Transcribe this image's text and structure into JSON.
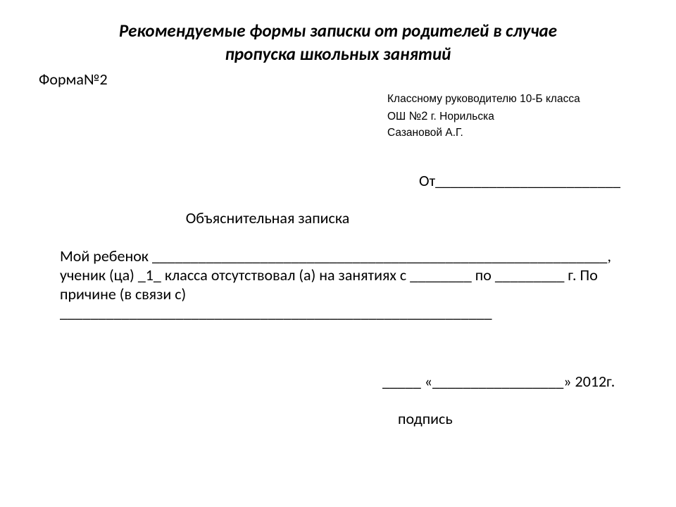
{
  "title_line1": "Рекомендуемые формы записки от родителей в случае",
  "title_line2": "пропуска школьных занятий",
  "form_no": "Форма№2",
  "addressee": {
    "line1": "Классному руководителю 10-Б класса",
    "line2_pre": "ОШ ",
    "line2_num": "№2",
    "line2_post": " г. Норильска",
    "line3": "Сазановой А.Г."
  },
  "from_label": "От",
  "from_blank": "________________________",
  "subtitle": "Объяснительная записка",
  "body_text": "Мой ребенок ___________________________________________________________, ученик (ца) _1_ класса отсутствовал (а) на занятиях с ________ по _________ г. По причине (в связи с) ________________________________________________________",
  "date_row": "_____ «_________________» 2012г.",
  "sign_label": "подпись",
  "colors": {
    "text": "#000000",
    "background": "#ffffff"
  },
  "fonts": {
    "title_pt": 25,
    "body_pt": 22,
    "addressee_pt": 15.5
  }
}
